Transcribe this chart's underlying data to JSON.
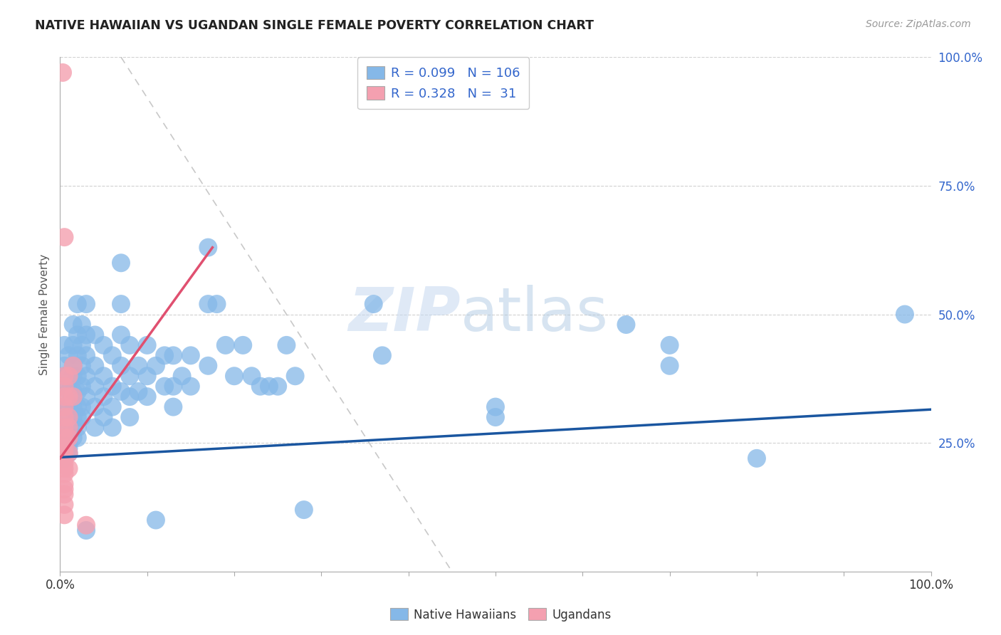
{
  "title": "NATIVE HAWAIIAN VS UGANDAN SINGLE FEMALE POVERTY CORRELATION CHART",
  "source": "Source: ZipAtlas.com",
  "ylabel": "Single Female Poverty",
  "xlim": [
    0.0,
    1.0
  ],
  "ylim": [
    0.0,
    1.0
  ],
  "ytick_positions": [
    0.25,
    0.5,
    0.75,
    1.0
  ],
  "watermark_zip": "ZIP",
  "watermark_atlas": "atlas",
  "blue_color": "#85B8E8",
  "pink_color": "#F4A0B0",
  "blue_line_color": "#1A56A0",
  "pink_line_color": "#E05070",
  "gray_dash_color": "#BBBBBB",
  "title_color": "#222222",
  "label_color": "#555555",
  "legend_text_color": "#3366CC",
  "blue_scatter": [
    [
      0.005,
      0.44
    ],
    [
      0.005,
      0.4
    ],
    [
      0.005,
      0.38
    ],
    [
      0.005,
      0.36
    ],
    [
      0.005,
      0.32
    ],
    [
      0.005,
      0.3
    ],
    [
      0.005,
      0.28
    ],
    [
      0.005,
      0.26
    ],
    [
      0.005,
      0.25
    ],
    [
      0.005,
      0.24
    ],
    [
      0.005,
      0.23
    ],
    [
      0.005,
      0.22
    ],
    [
      0.01,
      0.42
    ],
    [
      0.01,
      0.38
    ],
    [
      0.01,
      0.35
    ],
    [
      0.01,
      0.32
    ],
    [
      0.01,
      0.3
    ],
    [
      0.01,
      0.28
    ],
    [
      0.01,
      0.26
    ],
    [
      0.01,
      0.25
    ],
    [
      0.01,
      0.24
    ],
    [
      0.01,
      0.23
    ],
    [
      0.015,
      0.48
    ],
    [
      0.015,
      0.44
    ],
    [
      0.015,
      0.4
    ],
    [
      0.015,
      0.38
    ],
    [
      0.015,
      0.35
    ],
    [
      0.015,
      0.32
    ],
    [
      0.015,
      0.3
    ],
    [
      0.015,
      0.28
    ],
    [
      0.015,
      0.26
    ],
    [
      0.02,
      0.52
    ],
    [
      0.02,
      0.46
    ],
    [
      0.02,
      0.42
    ],
    [
      0.02,
      0.38
    ],
    [
      0.02,
      0.35
    ],
    [
      0.02,
      0.32
    ],
    [
      0.02,
      0.3
    ],
    [
      0.02,
      0.28
    ],
    [
      0.02,
      0.26
    ],
    [
      0.025,
      0.48
    ],
    [
      0.025,
      0.44
    ],
    [
      0.025,
      0.4
    ],
    [
      0.025,
      0.36
    ],
    [
      0.025,
      0.32
    ],
    [
      0.025,
      0.3
    ],
    [
      0.03,
      0.52
    ],
    [
      0.03,
      0.46
    ],
    [
      0.03,
      0.42
    ],
    [
      0.03,
      0.38
    ],
    [
      0.03,
      0.34
    ],
    [
      0.03,
      0.08
    ],
    [
      0.04,
      0.46
    ],
    [
      0.04,
      0.4
    ],
    [
      0.04,
      0.36
    ],
    [
      0.04,
      0.32
    ],
    [
      0.04,
      0.28
    ],
    [
      0.05,
      0.44
    ],
    [
      0.05,
      0.38
    ],
    [
      0.05,
      0.34
    ],
    [
      0.05,
      0.3
    ],
    [
      0.06,
      0.42
    ],
    [
      0.06,
      0.36
    ],
    [
      0.06,
      0.32
    ],
    [
      0.06,
      0.28
    ],
    [
      0.07,
      0.6
    ],
    [
      0.07,
      0.52
    ],
    [
      0.07,
      0.46
    ],
    [
      0.07,
      0.4
    ],
    [
      0.07,
      0.35
    ],
    [
      0.08,
      0.44
    ],
    [
      0.08,
      0.38
    ],
    [
      0.08,
      0.34
    ],
    [
      0.08,
      0.3
    ],
    [
      0.09,
      0.4
    ],
    [
      0.09,
      0.35
    ],
    [
      0.1,
      0.44
    ],
    [
      0.1,
      0.38
    ],
    [
      0.1,
      0.34
    ],
    [
      0.11,
      0.4
    ],
    [
      0.11,
      0.1
    ],
    [
      0.12,
      0.42
    ],
    [
      0.12,
      0.36
    ],
    [
      0.13,
      0.42
    ],
    [
      0.13,
      0.36
    ],
    [
      0.13,
      0.32
    ],
    [
      0.14,
      0.38
    ],
    [
      0.15,
      0.42
    ],
    [
      0.15,
      0.36
    ],
    [
      0.17,
      0.63
    ],
    [
      0.17,
      0.52
    ],
    [
      0.17,
      0.4
    ],
    [
      0.18,
      0.52
    ],
    [
      0.19,
      0.44
    ],
    [
      0.2,
      0.38
    ],
    [
      0.21,
      0.44
    ],
    [
      0.22,
      0.38
    ],
    [
      0.23,
      0.36
    ],
    [
      0.24,
      0.36
    ],
    [
      0.25,
      0.36
    ],
    [
      0.26,
      0.44
    ],
    [
      0.27,
      0.38
    ],
    [
      0.28,
      0.12
    ],
    [
      0.36,
      0.52
    ],
    [
      0.37,
      0.42
    ],
    [
      0.5,
      0.32
    ],
    [
      0.5,
      0.3
    ],
    [
      0.65,
      0.48
    ],
    [
      0.7,
      0.44
    ],
    [
      0.7,
      0.4
    ],
    [
      0.8,
      0.22
    ],
    [
      0.97,
      0.5
    ]
  ],
  "pink_scatter": [
    [
      0.003,
      0.97
    ],
    [
      0.005,
      0.65
    ],
    [
      0.005,
      0.38
    ],
    [
      0.005,
      0.36
    ],
    [
      0.005,
      0.34
    ],
    [
      0.005,
      0.32
    ],
    [
      0.005,
      0.3
    ],
    [
      0.005,
      0.28
    ],
    [
      0.005,
      0.26
    ],
    [
      0.005,
      0.25
    ],
    [
      0.005,
      0.24
    ],
    [
      0.005,
      0.23
    ],
    [
      0.005,
      0.22
    ],
    [
      0.005,
      0.21
    ],
    [
      0.005,
      0.2
    ],
    [
      0.005,
      0.19
    ],
    [
      0.005,
      0.17
    ],
    [
      0.005,
      0.16
    ],
    [
      0.005,
      0.15
    ],
    [
      0.005,
      0.13
    ],
    [
      0.005,
      0.11
    ],
    [
      0.01,
      0.38
    ],
    [
      0.01,
      0.34
    ],
    [
      0.01,
      0.3
    ],
    [
      0.01,
      0.28
    ],
    [
      0.01,
      0.26
    ],
    [
      0.01,
      0.23
    ],
    [
      0.01,
      0.2
    ],
    [
      0.015,
      0.4
    ],
    [
      0.015,
      0.34
    ],
    [
      0.03,
      0.09
    ]
  ],
  "blue_line": {
    "x0": 0.0,
    "y0": 0.222,
    "x1": 1.0,
    "y1": 0.315
  },
  "pink_line": {
    "x0": 0.0,
    "y0": 0.22,
    "x1": 0.175,
    "y1": 0.63
  },
  "gray_dash_line": {
    "x0": 0.07,
    "y0": 1.0,
    "x1": 0.45,
    "y1": 0.0
  },
  "background_color": "#FFFFFF",
  "grid_color": "#CCCCCC"
}
